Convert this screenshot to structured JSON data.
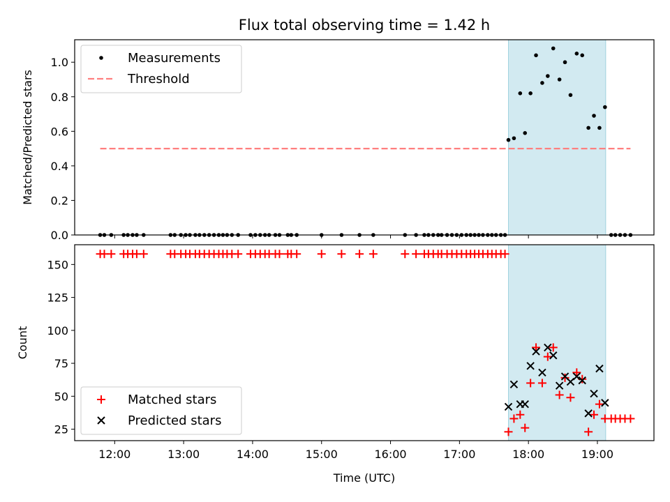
{
  "chart_data": {
    "title": "Flux total observing time = 1.42 h",
    "shared_x": {
      "label": "Time (UTC)",
      "unit": "hours UTC",
      "lim": [
        11.42,
        19.82
      ],
      "tick_values": [
        12,
        13,
        14,
        15,
        16,
        17,
        18,
        19
      ],
      "tick_labels": [
        "12:00",
        "13:00",
        "14:00",
        "15:00",
        "16:00",
        "17:00",
        "18:00",
        "19:00"
      ]
    },
    "highlight_span": {
      "x": [
        17.71,
        19.12
      ],
      "color": "#add8e6"
    },
    "panels": [
      {
        "type": "scatter",
        "ylabel": "Matched/Predicted stars",
        "ylim": [
          0,
          1.13
        ],
        "yticks": [
          0.0,
          0.2,
          0.4,
          0.6,
          0.8,
          1.0
        ],
        "ytick_labels": [
          "0.0",
          "0.2",
          "0.4",
          "0.6",
          "0.8",
          "1.0"
        ],
        "legend_position": "top-left",
        "series": [
          {
            "name": "Measurements",
            "kind": "scatter",
            "marker": "dot",
            "color": "#000000",
            "x": [
              11.79,
              11.85,
              11.95,
              12.13,
              12.19,
              12.26,
              12.32,
              12.42,
              12.81,
              12.87,
              12.96,
              13.03,
              13.09,
              13.17,
              13.23,
              13.3,
              13.37,
              13.44,
              13.51,
              13.57,
              13.63,
              13.7,
              13.79,
              13.97,
              14.04,
              14.11,
              14.18,
              14.24,
              14.33,
              14.39,
              14.51,
              14.56,
              14.64,
              15.0,
              15.29,
              15.55,
              15.75,
              16.21,
              16.37,
              16.49,
              16.55,
              16.62,
              16.69,
              16.74,
              16.82,
              16.89,
              16.96,
              17.03,
              17.1,
              17.16,
              17.22,
              17.28,
              17.34,
              17.41,
              17.47,
              17.53,
              17.6,
              17.66,
              17.71,
              17.79,
              17.88,
              17.95,
              18.03,
              18.11,
              18.2,
              18.28,
              18.36,
              18.45,
              18.53,
              18.61,
              18.7,
              18.78,
              18.87,
              18.95,
              19.03,
              19.11,
              19.2,
              19.26,
              19.33,
              19.4,
              19.48
            ],
            "y": [
              0,
              0,
              0,
              0,
              0,
              0,
              0,
              0,
              0,
              0,
              0,
              0,
              0,
              0,
              0,
              0,
              0,
              0,
              0,
              0,
              0,
              0,
              0,
              0,
              0,
              0,
              0,
              0,
              0,
              0,
              0,
              0,
              0,
              0,
              0,
              0,
              0,
              0,
              0,
              0,
              0,
              0,
              0,
              0,
              0,
              0,
              0,
              0,
              0,
              0,
              0,
              0,
              0,
              0,
              0,
              0,
              0,
              0,
              0.55,
              0.56,
              0.82,
              0.59,
              0.82,
              1.04,
              0.88,
              0.92,
              1.08,
              0.9,
              1.0,
              0.81,
              1.05,
              1.04,
              0.62,
              0.69,
              0.62,
              0.74,
              0,
              0,
              0,
              0,
              0
            ]
          },
          {
            "name": "Threshold",
            "kind": "line",
            "dash": "dashed",
            "color": "#ff7f7f",
            "x": [
              11.79,
              19.48
            ],
            "y": [
              0.5,
              0.5
            ]
          }
        ]
      },
      {
        "type": "scatter",
        "ylabel": "Count",
        "ylim": [
          16.3,
          165
        ],
        "yticks": [
          25,
          50,
          75,
          100,
          125,
          150
        ],
        "ytick_labels": [
          "25",
          "50",
          "75",
          "100",
          "125",
          "150"
        ],
        "legend_position": "bottom-left",
        "series": [
          {
            "name": "Matched stars",
            "kind": "scatter",
            "marker": "plus",
            "color": "#ff0000",
            "x": [
              11.79,
              11.85,
              11.95,
              12.13,
              12.19,
              12.26,
              12.32,
              12.42,
              12.81,
              12.87,
              12.96,
              13.03,
              13.09,
              13.17,
              13.23,
              13.3,
              13.37,
              13.44,
              13.51,
              13.57,
              13.63,
              13.7,
              13.79,
              13.97,
              14.04,
              14.11,
              14.18,
              14.24,
              14.33,
              14.39,
              14.51,
              14.56,
              14.64,
              15.0,
              15.29,
              15.55,
              15.75,
              16.21,
              16.37,
              16.49,
              16.55,
              16.62,
              16.69,
              16.74,
              16.82,
              16.89,
              16.96,
              17.03,
              17.1,
              17.16,
              17.22,
              17.28,
              17.34,
              17.41,
              17.47,
              17.53,
              17.6,
              17.66,
              17.71,
              17.79,
              17.88,
              17.95,
              18.03,
              18.11,
              18.2,
              18.28,
              18.36,
              18.45,
              18.53,
              18.61,
              18.7,
              18.78,
              18.87,
              18.95,
              19.03,
              19.11,
              19.2,
              19.26,
              19.33,
              19.4,
              19.48
            ],
            "y": [
              158,
              158,
              158,
              158,
              158,
              158,
              158,
              158,
              158,
              158,
              158,
              158,
              158,
              158,
              158,
              158,
              158,
              158,
              158,
              158,
              158,
              158,
              158,
              158,
              158,
              158,
              158,
              158,
              158,
              158,
              158,
              158,
              158,
              158,
              158,
              158,
              158,
              158,
              158,
              158,
              158,
              158,
              158,
              158,
              158,
              158,
              158,
              158,
              158,
              158,
              158,
              158,
              158,
              158,
              158,
              158,
              158,
              158,
              23,
              33,
              36,
              26,
              60,
              87,
              60,
              80,
              87,
              51,
              64,
              49,
              68,
              63,
              23,
              36,
              44,
              33,
              33,
              33,
              33,
              33,
              33
            ]
          },
          {
            "name": "Predicted stars",
            "kind": "scatter",
            "marker": "x",
            "color": "#000000",
            "x": [
              17.71,
              17.79,
              17.88,
              17.95,
              18.03,
              18.11,
              18.2,
              18.28,
              18.36,
              18.45,
              18.53,
              18.61,
              18.7,
              18.78,
              18.87,
              18.95,
              19.03,
              19.11
            ],
            "y": [
              42,
              59,
              44,
              44,
              73,
              84,
              68,
              87,
              81,
              58,
              65,
              61,
              65,
              62,
              37,
              52,
              71,
              45
            ]
          }
        ]
      }
    ]
  }
}
